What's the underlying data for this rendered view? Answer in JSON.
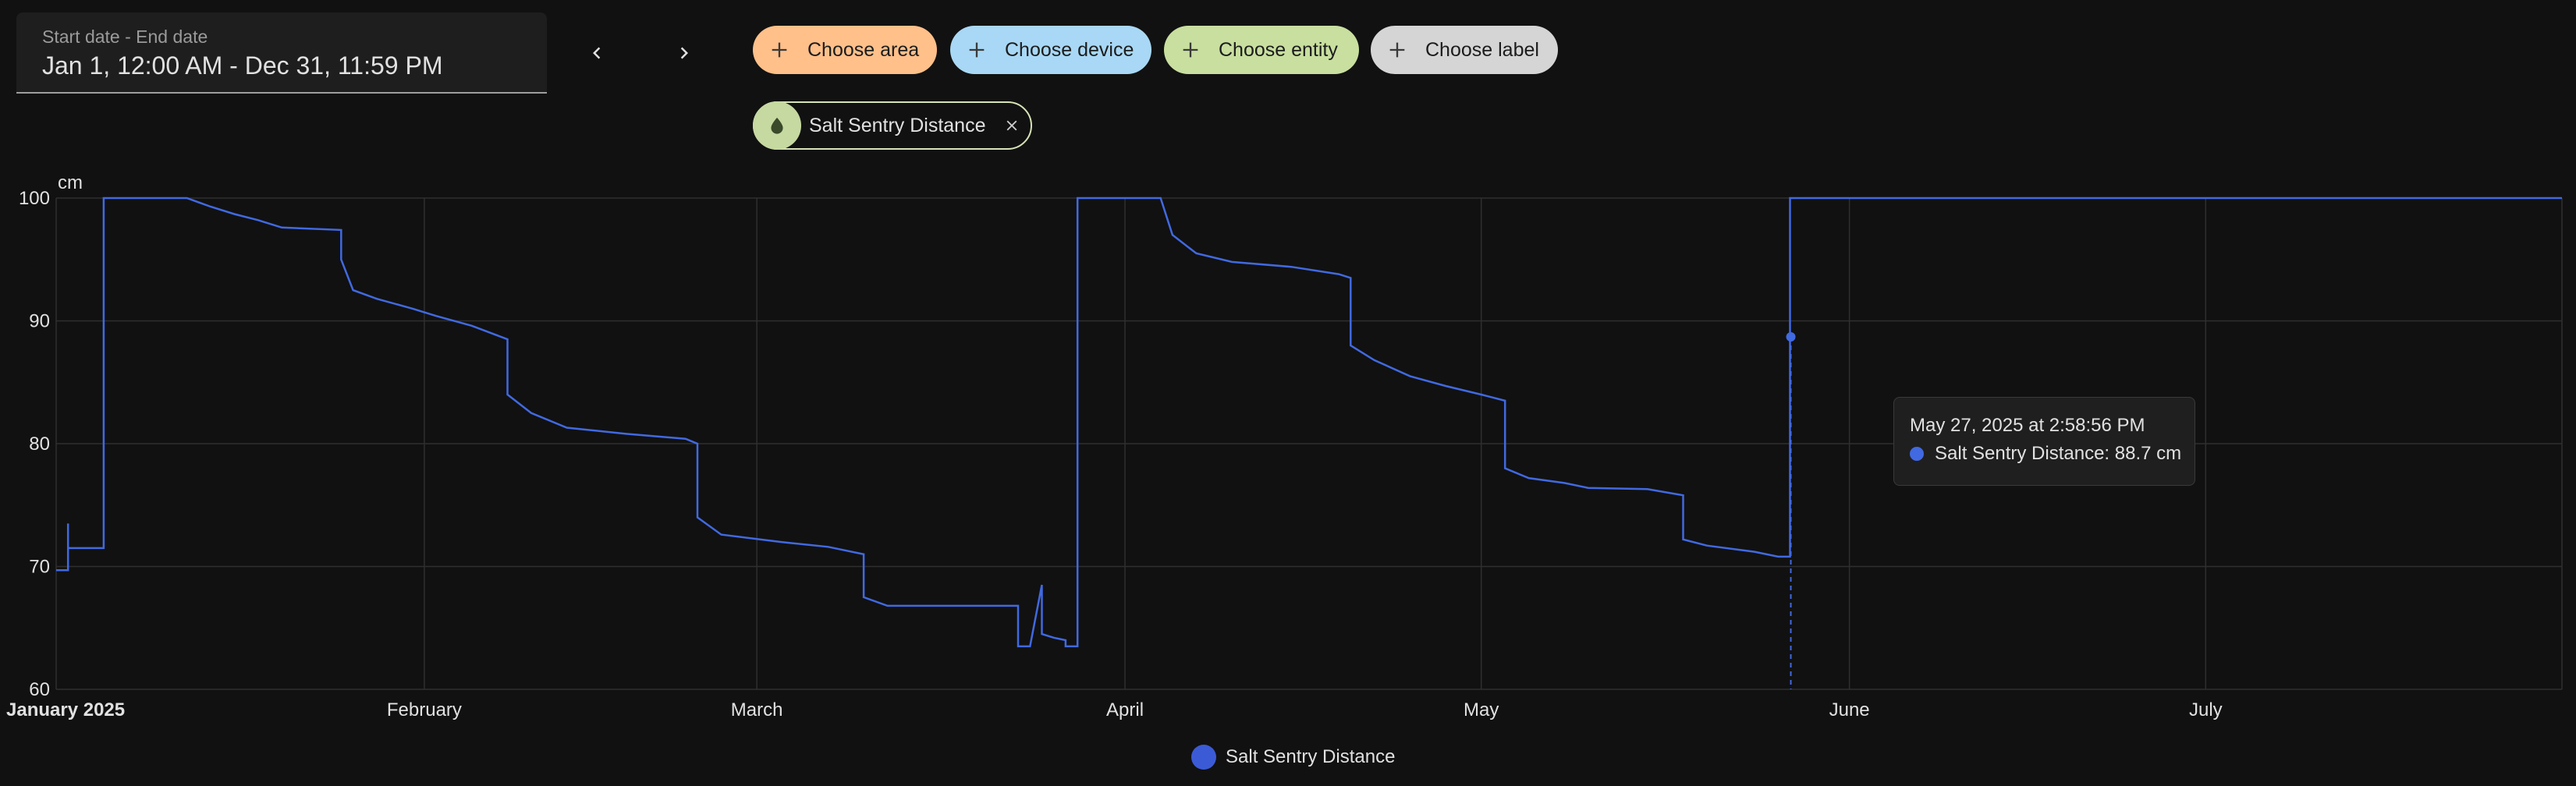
{
  "date_picker": {
    "label": "Start date - End date",
    "value": "Jan 1, 12:00 AM - Dec 31, 11:59 PM"
  },
  "nav": {
    "prev_icon": "chevron-left-icon",
    "next_icon": "chevron-right-icon"
  },
  "filters": {
    "area": {
      "label": "Choose area",
      "color": "#ffc08a"
    },
    "device": {
      "label": "Choose device",
      "color": "#a8d8f5"
    },
    "entity": {
      "label": "Choose entity",
      "color": "#c8df9f"
    },
    "label": {
      "label": "Choose label",
      "color": "#d5d5d5"
    }
  },
  "selected_entity": {
    "label": "Salt Sentry Distance",
    "icon": "water-drop-icon"
  },
  "chart_data": {
    "type": "line",
    "unit": "cm",
    "ylim": [
      60,
      100
    ],
    "y_ticks": [
      "100",
      "90",
      "80",
      "70",
      "60"
    ],
    "x_ticks": [
      "January 2025",
      "February",
      "March",
      "April",
      "May",
      "June",
      "July"
    ],
    "grid": true,
    "legend_position": "bottom",
    "line_color": "#4169e1",
    "series": [
      {
        "name": "Salt Sentry Distance",
        "points": [
          [
            "2025-01-01",
            69.7
          ],
          [
            "2025-01-01",
            69.7
          ],
          [
            "2025-01-02",
            69.7
          ],
          [
            "2025-01-02",
            73.5
          ],
          [
            "2025-01-02",
            71.5
          ],
          [
            "2025-01-05",
            71.5
          ],
          [
            "2025-01-05",
            100
          ],
          [
            "2025-01-12",
            100
          ],
          [
            "2025-01-14",
            99.3
          ],
          [
            "2025-01-16",
            98.7
          ],
          [
            "2025-01-18",
            98.2
          ],
          [
            "2025-01-20",
            97.6
          ],
          [
            "2025-01-25",
            97.4
          ],
          [
            "2025-01-25",
            95.0
          ],
          [
            "2025-01-26",
            92.5
          ],
          [
            "2025-01-28",
            91.8
          ],
          [
            "2025-01-31",
            91.0
          ],
          [
            "2025-02-02",
            90.4
          ],
          [
            "2025-02-05",
            89.6
          ],
          [
            "2025-02-08",
            88.5
          ],
          [
            "2025-02-08",
            84.0
          ],
          [
            "2025-02-10",
            82.5
          ],
          [
            "2025-02-13",
            81.3
          ],
          [
            "2025-02-18",
            80.8
          ],
          [
            "2025-02-23",
            80.4
          ],
          [
            "2025-02-24",
            80.0
          ],
          [
            "2025-02-24",
            74.0
          ],
          [
            "2025-02-26",
            72.6
          ],
          [
            "2025-03-03",
            72.0
          ],
          [
            "2025-03-07",
            71.6
          ],
          [
            "2025-03-10",
            71.0
          ],
          [
            "2025-03-10",
            67.5
          ],
          [
            "2025-03-12",
            66.8
          ],
          [
            "2025-03-18",
            66.8
          ],
          [
            "2025-03-23",
            66.8
          ],
          [
            "2025-03-23",
            63.5
          ],
          [
            "2025-03-24",
            63.5
          ],
          [
            "2025-03-25",
            68.5
          ],
          [
            "2025-03-25",
            64.5
          ],
          [
            "2025-03-26",
            64.2
          ],
          [
            "2025-03-27",
            64.0
          ],
          [
            "2025-03-27",
            63.5
          ],
          [
            "2025-03-28",
            63.5
          ],
          [
            "2025-03-28",
            100
          ],
          [
            "2025-04-04",
            100
          ],
          [
            "2025-04-05",
            97.0
          ],
          [
            "2025-04-07",
            95.5
          ],
          [
            "2025-04-10",
            94.8
          ],
          [
            "2025-04-15",
            94.4
          ],
          [
            "2025-04-19",
            93.8
          ],
          [
            "2025-04-20",
            93.5
          ],
          [
            "2025-04-20",
            88.0
          ],
          [
            "2025-04-22",
            86.8
          ],
          [
            "2025-04-25",
            85.5
          ],
          [
            "2025-04-28",
            84.7
          ],
          [
            "2025-05-01",
            84.0
          ],
          [
            "2025-05-03",
            83.5
          ],
          [
            "2025-05-03",
            78.0
          ],
          [
            "2025-05-05",
            77.2
          ],
          [
            "2025-05-08",
            76.8
          ],
          [
            "2025-05-10",
            76.4
          ],
          [
            "2025-05-15",
            76.3
          ],
          [
            "2025-05-18",
            75.8
          ],
          [
            "2025-05-18",
            72.2
          ],
          [
            "2025-05-20",
            71.7
          ],
          [
            "2025-05-24",
            71.2
          ],
          [
            "2025-05-26",
            70.8
          ],
          [
            "2025-05-27",
            70.8
          ],
          [
            "2025-05-27",
            100
          ],
          [
            "2025-07-31",
            100
          ]
        ]
      }
    ]
  },
  "tooltip": {
    "title": "May 27, 2025 at 2:58:56 PM",
    "series_label": "Salt Sentry Distance: 88.7 cm",
    "point": [
      "2025-05-27",
      88.7
    ]
  },
  "legend": {
    "label": "Salt Sentry Distance"
  }
}
